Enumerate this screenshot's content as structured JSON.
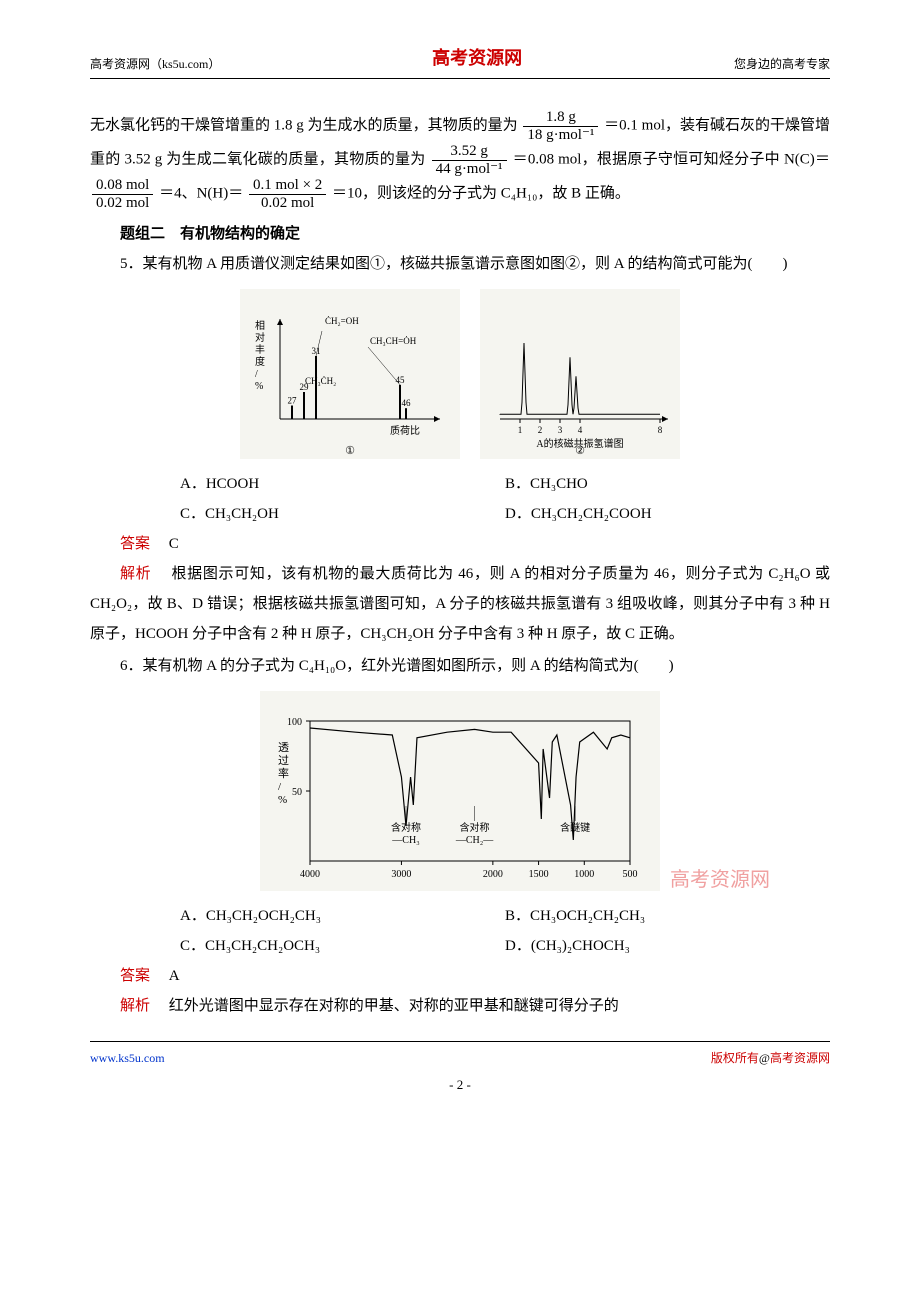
{
  "header": {
    "left": "高考资源网（ks5u.com）",
    "center": "高考资源网",
    "right": "您身边的高考专家"
  },
  "body": {
    "frag1": "无水氯化钙的干燥管增重的 1.8 g 为生成水的质量，其物质的量为",
    "frac1": {
      "num": "1.8 g",
      "den": "18 g·mol⁻¹"
    },
    "frag1b": "＝0.1 mol，装有碱石灰的干燥管增重的 3.52 g 为生成二氧化碳的质量，其物质的量为",
    "frac2": {
      "num": "3.52 g",
      "den": "44 g·mol⁻¹"
    },
    "frag2b": "＝0.08 mol，根据原子守恒可知烃分子中 N(C)＝",
    "frac3": {
      "num": "0.08 mol",
      "den": "0.02 mol"
    },
    "frag3b": "＝4、N(H)＝",
    "frac4": {
      "num": "0.1 mol × 2",
      "den": "0.02 mol"
    },
    "frag4b": "＝10，则该烃的分子式为 C₄H₁₀，故 B 正确。",
    "section2": "题组二　有机物结构的确定",
    "q5": "5．某有机物 A 用质谱仪测定结果如图①，核磁共振氢谱示意图如图②，则 A 的结构简式可能为(　　)",
    "q5_opts": {
      "A": "A．HCOOH",
      "B": "B．CH₃CHO",
      "C": "C．CH₃CH₂OH",
      "D": "D．CH₃CH₂CH₂COOH"
    },
    "q5_ans_label": "答案",
    "q5_ans": "C",
    "q5_exp_label": "解析",
    "q5_exp": "根据图示可知，该有机物的最大质荷比为 46，则 A 的相对分子质量为 46，则分子式为 C₂H₆O 或 CH₂O₂，故 B、D 错误；根据核磁共振氢谱图可知，A 分子的核磁共振氢谱有 3 组吸收峰，则其分子中有 3 种 H 原子，HCOOH 分子中含有 2 种 H 原子，CH₃CH₂OH 分子中含有 3 种 H 原子，故 C 正确。",
    "q6": "6．某有机物 A 的分子式为 C₄H₁₀O，红外光谱图如图所示，则 A 的结构简式为(　　)",
    "q6_opts": {
      "A": "A．CH₃CH₂OCH₂CH₃",
      "B": "B．CH₃OCH₂CH₂CH₃",
      "C": "C．CH₃CH₂CH₂OCH₃",
      "D": "D．(CH₃)₂CHOCH₃"
    },
    "q6_ans_label": "答案",
    "q6_ans": "A",
    "q6_exp_label": "解析",
    "q6_exp": "红外光谱图中显示存在对称的甲基、对称的亚甲基和醚键可得分子的"
  },
  "figures": {
    "fig1": {
      "ylabel": "相对丰度/%",
      "xlabel": "质荷比",
      "caption": "①",
      "peaks": [
        {
          "x": 27,
          "h": 15,
          "label": "27"
        },
        {
          "x": 29,
          "h": 30,
          "label": "29"
        },
        {
          "x": 31,
          "h": 70,
          "label": "31",
          "ann": "ĊH₂=OH"
        },
        {
          "x": 45,
          "h": 38,
          "label": "45",
          "ann": "CH₃CH=ȮH"
        },
        {
          "x": 46,
          "h": 12,
          "label": "46"
        }
      ],
      "ann_extra": "CH₃ĊH₂",
      "bg": "#f5f5f0",
      "axis_color": "#000000",
      "bar_color": "#000000"
    },
    "fig2": {
      "xticks": [
        "1",
        "2",
        "3",
        "4",
        "8"
      ],
      "xlabel": "A的核磁共振氢谱图",
      "caption": "②",
      "peaks": [
        {
          "x": 1.2,
          "h": 75
        },
        {
          "x": 3.5,
          "h": 60
        },
        {
          "x": 3.8,
          "h": 40
        }
      ],
      "bg": "#f5f5f0",
      "axis_color": "#000000",
      "line_color": "#000000"
    },
    "fig3": {
      "ylabel": "透过率/%",
      "yticks": [
        "100",
        "50"
      ],
      "xticks": [
        "4000",
        "3000",
        "2000",
        "1500",
        "1000",
        "500"
      ],
      "annotations": [
        {
          "text": "含对称\n—CH₃",
          "x": 2950
        },
        {
          "text": "含对称\n—CH₂—",
          "x": 2200
        },
        {
          "text": "含醚键",
          "x": 1100
        }
      ],
      "bg": "#f5f5f0",
      "axis_color": "#000000",
      "line_color": "#000000",
      "ylim": [
        0,
        100
      ],
      "xlim": [
        4000,
        500
      ],
      "curve": [
        [
          4000,
          95
        ],
        [
          3500,
          92
        ],
        [
          3100,
          90
        ],
        [
          3000,
          60
        ],
        [
          2950,
          25
        ],
        [
          2900,
          60
        ],
        [
          2870,
          40
        ],
        [
          2830,
          88
        ],
        [
          2500,
          92
        ],
        [
          2200,
          94
        ],
        [
          2000,
          92
        ],
        [
          1800,
          92
        ],
        [
          1500,
          70
        ],
        [
          1470,
          30
        ],
        [
          1450,
          80
        ],
        [
          1380,
          45
        ],
        [
          1350,
          85
        ],
        [
          1300,
          90
        ],
        [
          1150,
          40
        ],
        [
          1120,
          15
        ],
        [
          1090,
          60
        ],
        [
          1050,
          85
        ],
        [
          900,
          92
        ],
        [
          750,
          80
        ],
        [
          700,
          88
        ],
        [
          600,
          90
        ],
        [
          500,
          88
        ]
      ]
    },
    "watermark": "高考资源网"
  },
  "footer": {
    "left": "www.ks5u.com",
    "right_pre": "版权所有",
    "right_at": "@",
    "right_post": "高考资源网",
    "page": "- 2 -"
  },
  "colors": {
    "red": "#cc0000",
    "blue": "#0033cc"
  }
}
